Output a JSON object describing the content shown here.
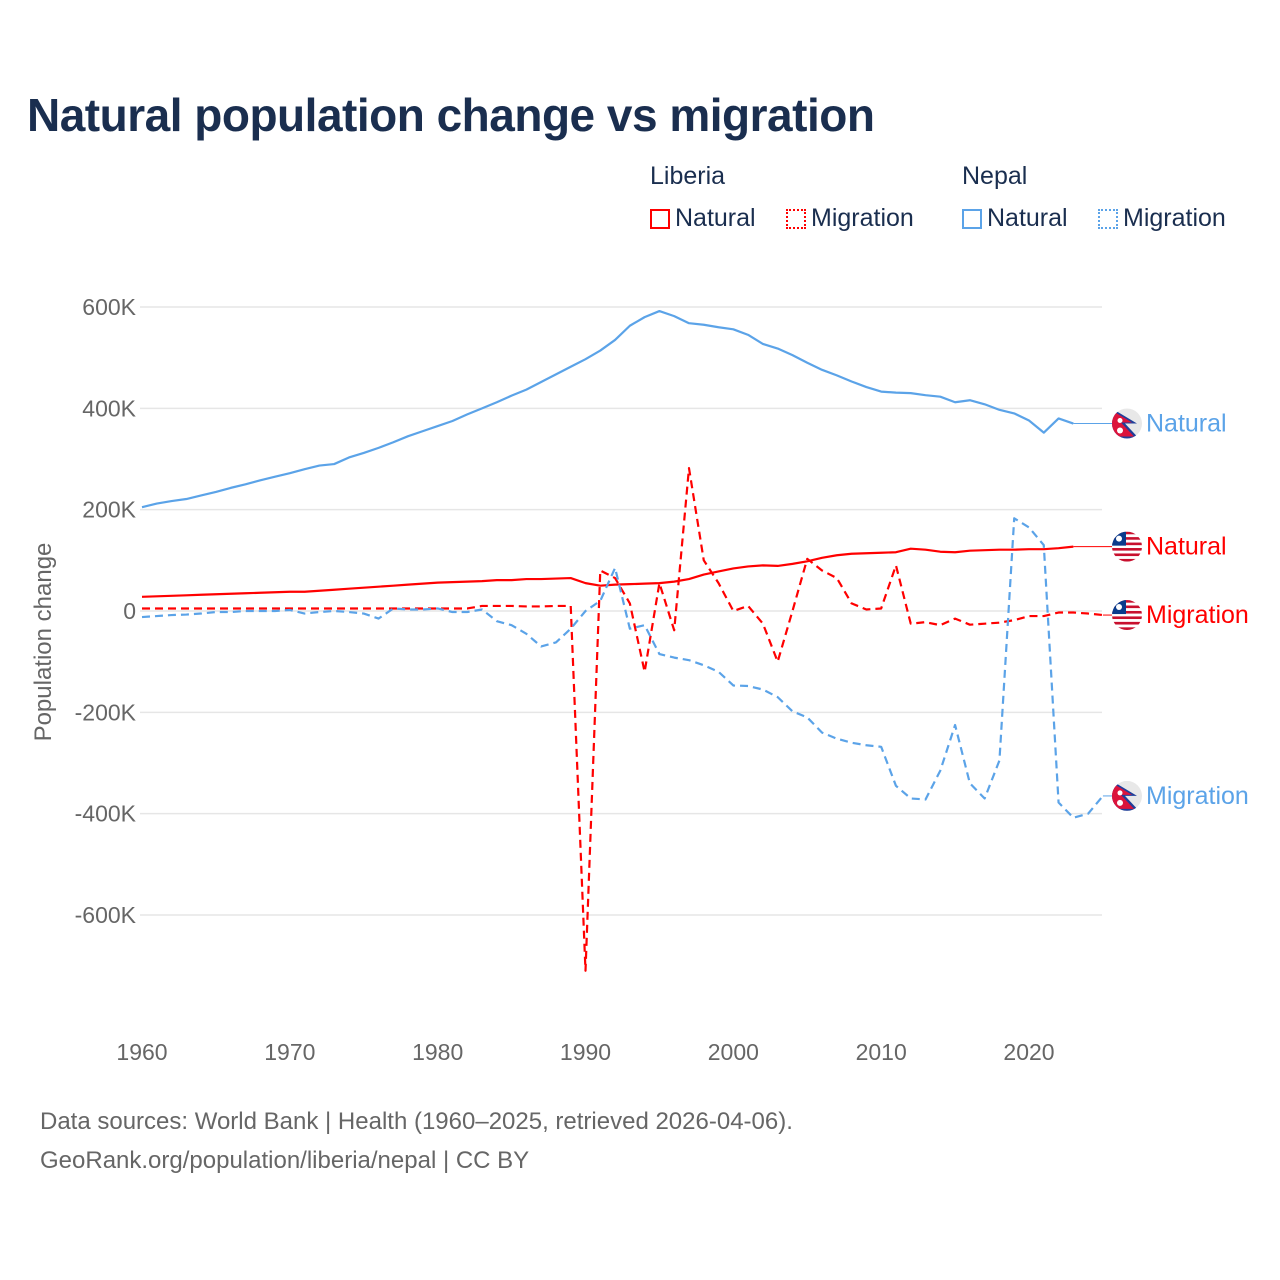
{
  "title": "Natural population change vs migration",
  "legend": {
    "groups": [
      {
        "name": "Liberia",
        "color": "#ff0000",
        "items": [
          "Natural",
          "Migration"
        ]
      },
      {
        "name": "Nepal",
        "color": "#5ba3e8",
        "items": [
          "Natural",
          "Migration"
        ]
      }
    ]
  },
  "footer": {
    "line1": "Data sources: World Bank | Health (1960–2025, retrieved 2026-04-06).",
    "line2": "GeoRank.org/population/liberia/nepal | CC BY"
  },
  "chart_data": {
    "type": "line",
    "title": "Natural population change vs migration",
    "xlabel": "",
    "ylabel": "Population change",
    "xlim": [
      1960,
      2025
    ],
    "ylim": [
      -800000,
      650000
    ],
    "x_ticks": [
      "1960",
      "1970",
      "1980",
      "1990",
      "2000",
      "2010",
      "2020"
    ],
    "y_ticks": [
      {
        "v": 600000,
        "label": "600K"
      },
      {
        "v": 400000,
        "label": "400K"
      },
      {
        "v": 200000,
        "label": "200K"
      },
      {
        "v": 0,
        "label": "0"
      },
      {
        "v": -200000,
        "label": "-200K"
      },
      {
        "v": -400000,
        "label": "-400K"
      },
      {
        "v": -600000,
        "label": "-600K"
      }
    ],
    "grid": true,
    "x_start": 1960,
    "units": "thousands",
    "series": [
      {
        "name": "Nepal Natural",
        "country": "Nepal",
        "label": "Natural",
        "color": "#5ba3e8",
        "dash": false,
        "values": [
          205,
          212,
          217,
          221,
          228,
          235,
          243,
          250,
          258,
          265,
          272,
          280,
          287,
          290,
          303,
          312,
          322,
          333,
          345,
          355,
          365,
          375,
          388,
          400,
          412,
          425,
          437,
          452,
          467,
          482,
          497,
          514,
          535,
          563,
          580,
          592,
          582,
          568,
          565,
          560,
          556,
          545,
          527,
          518,
          505,
          490,
          476,
          465,
          453,
          442,
          433,
          431,
          430,
          426,
          423,
          412,
          416,
          408,
          397,
          390,
          376,
          352,
          380,
          370
        ]
      },
      {
        "name": "Liberia Natural",
        "country": "Liberia",
        "label": "Natural",
        "color": "#ff0000",
        "dash": false,
        "values": [
          28,
          29,
          30,
          31,
          32,
          33,
          34,
          35,
          36,
          37,
          38,
          38,
          40,
          42,
          44,
          46,
          48,
          50,
          52,
          54,
          56,
          57,
          58,
          59,
          61,
          61,
          63,
          63,
          64,
          65,
          55,
          50,
          52,
          53,
          54,
          55,
          58,
          63,
          72,
          78,
          84,
          88,
          90,
          89,
          93,
          98,
          105,
          110,
          113,
          114,
          115,
          116,
          123,
          121,
          117,
          116,
          119,
          120,
          121,
          121,
          122,
          122,
          124,
          127
        ]
      },
      {
        "name": "Liberia Migration",
        "country": "Liberia",
        "label": "Migration",
        "color": "#ff0000",
        "dash": true,
        "values": [
          5,
          5,
          5,
          5,
          5,
          5,
          5,
          5,
          5,
          5,
          5,
          5,
          5,
          5,
          5,
          5,
          5,
          5,
          5,
          5,
          5,
          5,
          5,
          10,
          10,
          10,
          9,
          9,
          10,
          10,
          -710,
          80,
          65,
          15,
          -120,
          55,
          -38,
          282,
          100,
          55,
          0,
          10,
          -25,
          -100,
          0,
          103,
          80,
          65,
          15,
          3,
          5,
          90,
          -25,
          -22,
          -28,
          -15,
          -27,
          -25,
          -23,
          -18,
          -10,
          -10,
          -3,
          -3,
          -5,
          -8
        ]
      },
      {
        "name": "Nepal Migration",
        "country": "Nepal",
        "label": "Migration",
        "color": "#5ba3e8",
        "dash": true,
        "values": [
          -12,
          -10,
          -8,
          -7,
          -5,
          -2,
          -2,
          0,
          0,
          0,
          2,
          -5,
          -2,
          0,
          -2,
          -5,
          -15,
          5,
          3,
          3,
          5,
          -2,
          -2,
          3,
          -20,
          -28,
          -45,
          -70,
          -62,
          -35,
          0,
          20,
          85,
          -35,
          -28,
          -85,
          -92,
          -97,
          -107,
          -120,
          -147,
          -148,
          -155,
          -170,
          -198,
          -210,
          -240,
          -252,
          -260,
          -265,
          -268,
          -345,
          -370,
          -372,
          -315,
          -225,
          -340,
          -370,
          -295,
          183,
          165,
          130,
          -378,
          -408,
          -400,
          -365
        ]
      }
    ]
  }
}
